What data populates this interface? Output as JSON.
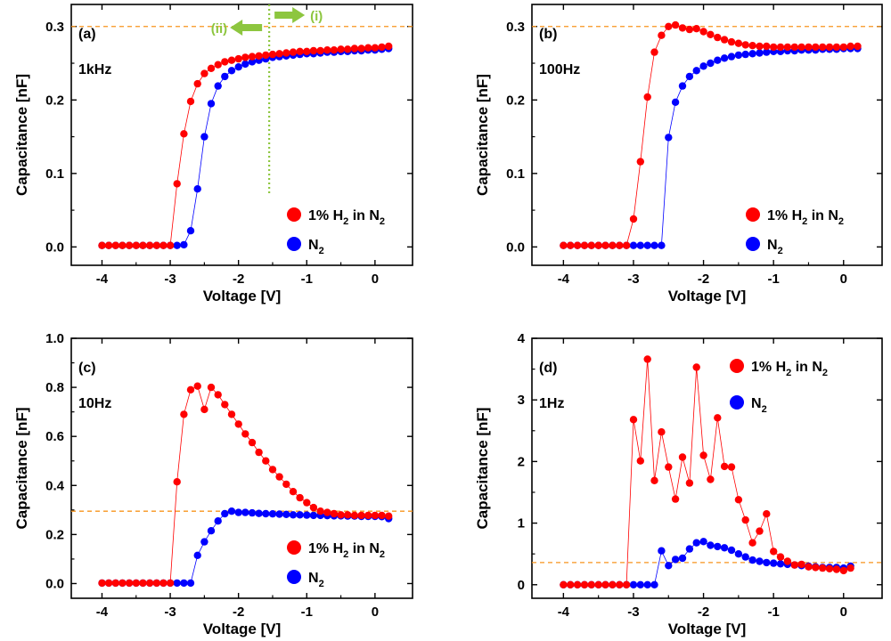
{
  "figure": {
    "background": "#ffffff",
    "red_color": "#ff0000",
    "blue_color": "#0000ff",
    "ref_line_color": "#f7941d",
    "annot_color": "#8dc63f"
  },
  "chart_data": [
    {
      "type": "scatter",
      "panel_label": "(a)",
      "frequency_label": "1kHz",
      "xlabel": "Voltage [V]",
      "ylabel": "Capacitance [nF]",
      "xlim": [
        -4.45,
        0.55
      ],
      "ylim": [
        -0.025,
        0.33
      ],
      "xticks": [
        -4,
        -3,
        -2,
        -1,
        0
      ],
      "xtick_labels": [
        "-4",
        "-3",
        "-2",
        "-1",
        "0"
      ],
      "yticks": [
        0.0,
        0.1,
        0.2,
        0.3
      ],
      "ytick_labels": [
        "0.0",
        "0.1",
        "0.2",
        "0.3"
      ],
      "reference_line_y": 0.3,
      "vertical_line_x": -1.55,
      "annotations": [
        {
          "text": "(ii)",
          "arrow": "left"
        },
        {
          "text": "(i)",
          "arrow": "right"
        }
      ],
      "legend_position": "bottom-right",
      "series": [
        {
          "name": "1% H2 in N2",
          "label_main": "1% H",
          "label_sub1": "2",
          "label_mid": " in N",
          "label_sub2": "2",
          "color": "#ff0000",
          "x": [
            -4.0,
            -3.9,
            -3.8,
            -3.7,
            -3.6,
            -3.5,
            -3.4,
            -3.3,
            -3.2,
            -3.1,
            -3.0,
            -2.9,
            -2.8,
            -2.7,
            -2.6,
            -2.5,
            -2.4,
            -2.3,
            -2.2,
            -2.1,
            -2.0,
            -1.9,
            -1.8,
            -1.7,
            -1.6,
            -1.5,
            -1.4,
            -1.3,
            -1.2,
            -1.1,
            -1.0,
            -0.9,
            -0.8,
            -0.7,
            -0.6,
            -0.5,
            -0.4,
            -0.3,
            -0.2,
            -0.1,
            0.0,
            0.1,
            0.2
          ],
          "y": [
            0.002,
            0.002,
            0.002,
            0.002,
            0.002,
            0.002,
            0.002,
            0.002,
            0.002,
            0.002,
            0.002,
            0.086,
            0.154,
            0.198,
            0.222,
            0.236,
            0.243,
            0.248,
            0.252,
            0.254,
            0.256,
            0.258,
            0.259,
            0.26,
            0.261,
            0.262,
            0.263,
            0.264,
            0.265,
            0.266,
            0.266,
            0.267,
            0.267,
            0.268,
            0.268,
            0.269,
            0.269,
            0.27,
            0.27,
            0.271,
            0.271,
            0.272,
            0.273
          ]
        },
        {
          "name": "N2",
          "label_main": "N",
          "label_sub1": "2",
          "label_mid": "",
          "label_sub2": "",
          "color": "#0000ff",
          "x": [
            -4.0,
            -3.9,
            -3.8,
            -3.7,
            -3.6,
            -3.5,
            -3.4,
            -3.3,
            -3.2,
            -3.1,
            -3.0,
            -2.9,
            -2.8,
            -2.7,
            -2.6,
            -2.5,
            -2.4,
            -2.3,
            -2.2,
            -2.1,
            -2.0,
            -1.9,
            -1.8,
            -1.7,
            -1.6,
            -1.5,
            -1.4,
            -1.3,
            -1.2,
            -1.1,
            -1.0,
            -0.9,
            -0.8,
            -0.7,
            -0.6,
            -0.5,
            -0.4,
            -0.3,
            -0.2,
            -0.1,
            0.0,
            0.1,
            0.2
          ],
          "y": [
            0.002,
            0.002,
            0.002,
            0.002,
            0.002,
            0.002,
            0.002,
            0.002,
            0.002,
            0.002,
            0.002,
            0.002,
            0.003,
            0.022,
            0.079,
            0.15,
            0.195,
            0.219,
            0.232,
            0.24,
            0.245,
            0.249,
            0.252,
            0.254,
            0.256,
            0.258,
            0.259,
            0.26,
            0.261,
            0.262,
            0.263,
            0.263,
            0.264,
            0.265,
            0.265,
            0.266,
            0.266,
            0.267,
            0.267,
            0.268,
            0.268,
            0.269,
            0.27
          ]
        }
      ]
    },
    {
      "type": "scatter",
      "panel_label": "(b)",
      "frequency_label": "100Hz",
      "xlabel": "Voltage [V]",
      "ylabel": "Capacitance [nF]",
      "xlim": [
        -4.45,
        0.55
      ],
      "ylim": [
        -0.025,
        0.33
      ],
      "xticks": [
        -4,
        -3,
        -2,
        -1,
        0
      ],
      "xtick_labels": [
        "-4",
        "-3",
        "-2",
        "-1",
        "0"
      ],
      "yticks": [
        0.0,
        0.1,
        0.2,
        0.3
      ],
      "ytick_labels": [
        "0.0",
        "0.1",
        "0.2",
        "0.3"
      ],
      "reference_line_y": 0.3,
      "legend_position": "bottom-right",
      "series": [
        {
          "name": "1% H2 in N2",
          "label_main": "1% H",
          "label_sub1": "2",
          "label_mid": " in N",
          "label_sub2": "2",
          "color": "#ff0000",
          "x": [
            -4.0,
            -3.9,
            -3.8,
            -3.7,
            -3.6,
            -3.5,
            -3.4,
            -3.3,
            -3.2,
            -3.1,
            -3.0,
            -2.9,
            -2.8,
            -2.7,
            -2.6,
            -2.5,
            -2.4,
            -2.3,
            -2.2,
            -2.1,
            -2.0,
            -1.9,
            -1.8,
            -1.7,
            -1.6,
            -1.5,
            -1.4,
            -1.3,
            -1.2,
            -1.1,
            -1.0,
            -0.9,
            -0.8,
            -0.7,
            -0.6,
            -0.5,
            -0.4,
            -0.3,
            -0.2,
            -0.1,
            0.0,
            0.1,
            0.2
          ],
          "y": [
            0.002,
            0.002,
            0.002,
            0.002,
            0.002,
            0.002,
            0.002,
            0.002,
            0.002,
            0.002,
            0.038,
            0.116,
            0.204,
            0.265,
            0.288,
            0.3,
            0.302,
            0.298,
            0.296,
            0.297,
            0.293,
            0.289,
            0.285,
            0.282,
            0.279,
            0.277,
            0.275,
            0.274,
            0.273,
            0.273,
            0.272,
            0.272,
            0.272,
            0.272,
            0.272,
            0.272,
            0.272,
            0.272,
            0.272,
            0.272,
            0.272,
            0.273,
            0.273
          ]
        },
        {
          "name": "N2",
          "label_main": "N",
          "label_sub1": "2",
          "label_mid": "",
          "label_sub2": "",
          "color": "#0000ff",
          "x": [
            -4.0,
            -3.9,
            -3.8,
            -3.7,
            -3.6,
            -3.5,
            -3.4,
            -3.3,
            -3.2,
            -3.1,
            -3.0,
            -2.9,
            -2.8,
            -2.7,
            -2.6,
            -2.5,
            -2.4,
            -2.3,
            -2.2,
            -2.1,
            -2.0,
            -1.9,
            -1.8,
            -1.7,
            -1.6,
            -1.5,
            -1.4,
            -1.3,
            -1.2,
            -1.1,
            -1.0,
            -0.9,
            -0.8,
            -0.7,
            -0.6,
            -0.5,
            -0.4,
            -0.3,
            -0.2,
            -0.1,
            0.0,
            0.1,
            0.2
          ],
          "y": [
            0.002,
            0.002,
            0.002,
            0.002,
            0.002,
            0.002,
            0.002,
            0.002,
            0.002,
            0.002,
            0.002,
            0.002,
            0.002,
            0.002,
            0.002,
            0.149,
            0.197,
            0.219,
            0.232,
            0.24,
            0.246,
            0.25,
            0.254,
            0.257,
            0.259,
            0.261,
            0.262,
            0.263,
            0.264,
            0.265,
            0.266,
            0.266,
            0.267,
            0.267,
            0.268,
            0.268,
            0.268,
            0.269,
            0.269,
            0.269,
            0.27,
            0.27,
            0.27
          ]
        }
      ]
    },
    {
      "type": "scatter",
      "panel_label": "(c)",
      "frequency_label": "10Hz",
      "xlabel": "Voltage [V]",
      "ylabel": "Capacitance [nF]",
      "xlim": [
        -4.45,
        0.55
      ],
      "ylim": [
        -0.06,
        1.0
      ],
      "xticks": [
        -4,
        -3,
        -2,
        -1,
        0
      ],
      "xtick_labels": [
        "-4",
        "-3",
        "-2",
        "-1",
        "0"
      ],
      "yticks": [
        0.0,
        0.2,
        0.4,
        0.6,
        0.8,
        1.0
      ],
      "ytick_labels": [
        "0.0",
        "0.2",
        "0.4",
        "0.6",
        "0.8",
        "1.0"
      ],
      "reference_line_y": 0.295,
      "legend_position": "bottom-right",
      "series": [
        {
          "name": "1% H2 in N2",
          "label_main": "1% H",
          "label_sub1": "2",
          "label_mid": " in N",
          "label_sub2": "2",
          "color": "#ff0000",
          "x": [
            -4.0,
            -3.9,
            -3.8,
            -3.7,
            -3.6,
            -3.5,
            -3.4,
            -3.3,
            -3.2,
            -3.1,
            -3.0,
            -2.9,
            -2.8,
            -2.7,
            -2.6,
            -2.5,
            -2.4,
            -2.3,
            -2.2,
            -2.1,
            -2.0,
            -1.9,
            -1.8,
            -1.7,
            -1.6,
            -1.5,
            -1.4,
            -1.3,
            -1.2,
            -1.1,
            -1.0,
            -0.9,
            -0.8,
            -0.7,
            -0.6,
            -0.5,
            -0.4,
            -0.3,
            -0.2,
            -0.1,
            0.0,
            0.1,
            0.2
          ],
          "y": [
            0.002,
            0.002,
            0.002,
            0.002,
            0.002,
            0.002,
            0.002,
            0.002,
            0.002,
            0.002,
            0.002,
            0.415,
            0.69,
            0.79,
            0.805,
            0.71,
            0.8,
            0.77,
            0.73,
            0.69,
            0.65,
            0.61,
            0.575,
            0.535,
            0.5,
            0.465,
            0.435,
            0.405,
            0.375,
            0.35,
            0.33,
            0.31,
            0.295,
            0.29,
            0.285,
            0.28,
            0.28,
            0.278,
            0.278,
            0.278,
            0.278,
            0.278,
            0.275
          ]
        },
        {
          "name": "N2",
          "label_main": "N",
          "label_sub1": "2",
          "label_mid": "",
          "label_sub2": "",
          "color": "#0000ff",
          "x": [
            -4.0,
            -3.9,
            -3.8,
            -3.7,
            -3.6,
            -3.5,
            -3.4,
            -3.3,
            -3.2,
            -3.1,
            -3.0,
            -2.9,
            -2.8,
            -2.7,
            -2.6,
            -2.5,
            -2.4,
            -2.3,
            -2.2,
            -2.1,
            -2.0,
            -1.9,
            -1.8,
            -1.7,
            -1.6,
            -1.5,
            -1.4,
            -1.3,
            -1.2,
            -1.1,
            -1.0,
            -0.9,
            -0.8,
            -0.7,
            -0.6,
            -0.5,
            -0.4,
            -0.3,
            -0.2,
            -0.1,
            0.0,
            0.1,
            0.2
          ],
          "y": [
            0.002,
            0.002,
            0.002,
            0.002,
            0.002,
            0.002,
            0.002,
            0.002,
            0.002,
            0.002,
            0.002,
            0.002,
            0.002,
            0.002,
            0.115,
            0.17,
            0.215,
            0.255,
            0.285,
            0.295,
            0.29,
            0.29,
            0.288,
            0.286,
            0.285,
            0.284,
            0.283,
            0.282,
            0.28,
            0.28,
            0.279,
            0.278,
            0.278,
            0.277,
            0.276,
            0.276,
            0.275,
            0.275,
            0.274,
            0.274,
            0.274,
            0.273,
            0.265
          ]
        }
      ]
    },
    {
      "type": "scatter",
      "panel_label": "(d)",
      "frequency_label": "1Hz",
      "xlabel": "Voltage [V]",
      "ylabel": "Capacitance [nF]",
      "xlim": [
        -4.45,
        0.55
      ],
      "ylim": [
        -0.22,
        4.0
      ],
      "xticks": [
        -4,
        -3,
        -2,
        -1,
        0
      ],
      "xtick_labels": [
        "-4",
        "-3",
        "-2",
        "-1",
        "0"
      ],
      "yticks": [
        0,
        1,
        2,
        3,
        4
      ],
      "ytick_labels": [
        "0",
        "1",
        "2",
        "3",
        "4"
      ],
      "reference_line_y": 0.36,
      "legend_position": "top-right",
      "series": [
        {
          "name": "1% H2 in N2",
          "label_main": "1% H",
          "label_sub1": "2",
          "label_mid": " in N",
          "label_sub2": "2",
          "color": "#ff0000",
          "x": [
            -4.0,
            -3.9,
            -3.8,
            -3.7,
            -3.6,
            -3.5,
            -3.4,
            -3.3,
            -3.2,
            -3.1,
            -3.0,
            -2.9,
            -2.8,
            -2.7,
            -2.6,
            -2.5,
            -2.4,
            -2.3,
            -2.2,
            -2.1,
            -2.0,
            -1.9,
            -1.8,
            -1.7,
            -1.6,
            -1.5,
            -1.4,
            -1.3,
            -1.2,
            -1.1,
            -1.0,
            -0.9,
            -0.8,
            -0.7,
            -0.6,
            -0.5,
            -0.4,
            -0.3,
            -0.2,
            -0.1,
            0.0,
            0.1
          ],
          "y": [
            0.0,
            0.0,
            0.0,
            0.0,
            0.0,
            0.0,
            0.0,
            0.0,
            0.0,
            0.0,
            2.68,
            2.01,
            3.66,
            1.69,
            2.48,
            1.91,
            1.39,
            2.07,
            1.65,
            3.53,
            2.1,
            1.71,
            2.71,
            1.92,
            1.91,
            1.38,
            1.05,
            0.68,
            0.87,
            1.15,
            0.54,
            0.45,
            0.38,
            0.32,
            0.33,
            0.29,
            0.28,
            0.27,
            0.26,
            0.25,
            0.23,
            0.27
          ]
        },
        {
          "name": "N2",
          "label_main": "N",
          "label_sub1": "2",
          "label_mid": "",
          "label_sub2": "",
          "color": "#0000ff",
          "x": [
            -4.0,
            -3.9,
            -3.8,
            -3.7,
            -3.6,
            -3.5,
            -3.4,
            -3.3,
            -3.2,
            -3.1,
            -3.0,
            -2.9,
            -2.8,
            -2.7,
            -2.6,
            -2.5,
            -2.4,
            -2.3,
            -2.2,
            -2.1,
            -2.0,
            -1.9,
            -1.8,
            -1.7,
            -1.6,
            -1.5,
            -1.4,
            -1.3,
            -1.2,
            -1.1,
            -1.0,
            -0.9,
            -0.8,
            -0.7,
            -0.6,
            -0.5,
            -0.4,
            -0.3,
            -0.2,
            -0.1,
            0.0,
            0.1
          ],
          "y": [
            0.0,
            0.0,
            0.0,
            0.0,
            0.0,
            0.0,
            0.0,
            0.0,
            0.0,
            0.0,
            0.0,
            0.0,
            0.0,
            0.0,
            0.55,
            0.31,
            0.41,
            0.43,
            0.58,
            0.68,
            0.7,
            0.64,
            0.62,
            0.6,
            0.56,
            0.5,
            0.45,
            0.4,
            0.38,
            0.36,
            0.35,
            0.34,
            0.33,
            0.32,
            0.31,
            0.3,
            0.29,
            0.28,
            0.28,
            0.28,
            0.27,
            0.3
          ]
        }
      ]
    }
  ]
}
